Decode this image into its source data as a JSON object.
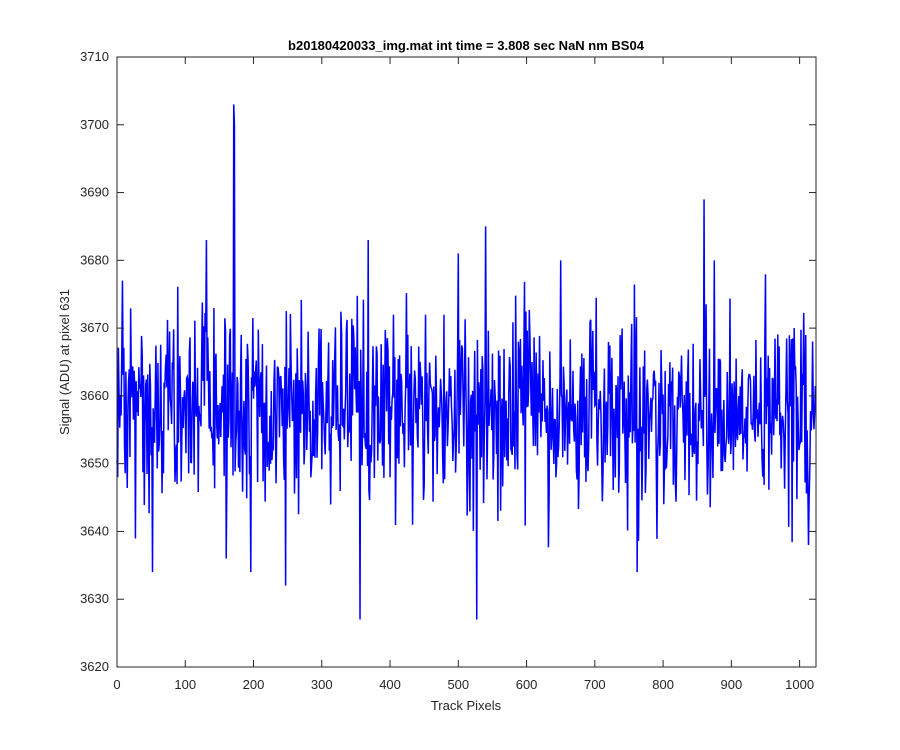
{
  "chart_data": {
    "type": "line",
    "title": "b20180420033_img.mat int time = 3.808 sec  NaN nm BS04",
    "xlabel": "Track Pixels",
    "ylabel": "Signal (ADU) at pixel 631",
    "xlim": [
      0,
      1024
    ],
    "ylim": [
      3620,
      3710
    ],
    "xticks": [
      0,
      100,
      200,
      300,
      400,
      500,
      600,
      700,
      800,
      900,
      1000
    ],
    "yticks": [
      3620,
      3630,
      3640,
      3650,
      3660,
      3670,
      3680,
      3690,
      3700,
      3710
    ],
    "grid": false,
    "series_color": "#0000ff",
    "baseline_mean": 3658,
    "noise_amplitude": 8,
    "num_points": 1024,
    "highlighted_points": [
      {
        "x": 8,
        "y": 3677
      },
      {
        "x": 52,
        "y": 3634
      },
      {
        "x": 131,
        "y": 3683
      },
      {
        "x": 160,
        "y": 3636
      },
      {
        "x": 171,
        "y": 3703
      },
      {
        "x": 172,
        "y": 3700
      },
      {
        "x": 196,
        "y": 3634
      },
      {
        "x": 247,
        "y": 3632
      },
      {
        "x": 356,
        "y": 3627
      },
      {
        "x": 368,
        "y": 3683
      },
      {
        "x": 500,
        "y": 3681
      },
      {
        "x": 527,
        "y": 3627
      },
      {
        "x": 540,
        "y": 3685
      },
      {
        "x": 650,
        "y": 3680
      },
      {
        "x": 762,
        "y": 3634
      },
      {
        "x": 860,
        "y": 3689
      },
      {
        "x": 1013,
        "y": 3638
      }
    ]
  }
}
